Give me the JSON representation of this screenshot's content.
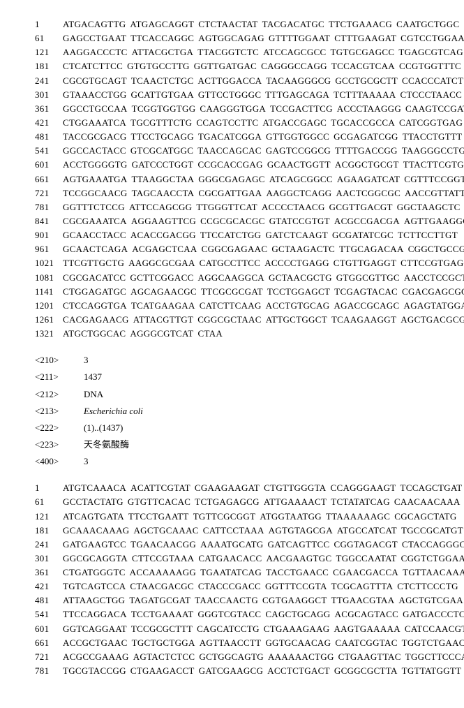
{
  "sequence_a": {
    "rows": [
      {
        "pos": "1",
        "groups": [
          "ATGACAGTTG",
          "ATGAGCAGGT",
          "CTCTAACTAT",
          "TACGACATGC",
          "TTCTGAAACG",
          "CAATGCTGGC"
        ]
      },
      {
        "pos": "61",
        "groups": [
          "GAGCCTGAAT",
          "TTCACCAGGC",
          "AGTGGCAGAG",
          "GTTTTGGAAT",
          "CTTTGAAGAT",
          "CGTCCTGGAA"
        ]
      },
      {
        "pos": "121",
        "groups": [
          "AAGGACCCTC",
          "ATTACGCTGA",
          "TTACGGTCTC",
          "ATCCAGCGCC",
          "TGTGCGAGCC",
          "TGAGCGTCAG"
        ]
      },
      {
        "pos": "181",
        "groups": [
          "CTCATCTTCC",
          "GTGTGCCTTG",
          "GGTTGATGAC",
          "CAGGGCCAGG",
          "TCCACGTCAA",
          "CCGTGGTTTC"
        ]
      },
      {
        "pos": "241",
        "groups": [
          "CGCGTGCAGT",
          "TCAACTCTGC",
          "ACTTGGACCA",
          "TACAAGGGCG",
          "GCCTGCGCTT",
          "CCACCCATCT"
        ]
      },
      {
        "pos": "301",
        "groups": [
          "GTAAACCTGG",
          "GCATTGTGAA",
          "GTTCCTGGGC",
          "TTTGAGCAGA",
          "TCTTTAAAAA",
          "CTCCCTAACC"
        ]
      },
      {
        "pos": "361",
        "groups": [
          "GGCCTGCCAA",
          "TCGGTGGTGG",
          "CAAGGGTGGA",
          "TCCGACTTCG",
          "ACCCTAAGGG",
          "CAAGTCCGAT"
        ]
      },
      {
        "pos": "421",
        "groups": [
          "CTGGAAATCA",
          "TGCGTTTCTG",
          "CCAGTCCTTC",
          "ATGACCGAGC",
          "TGCACCGCCA",
          "CATCGGTGAG"
        ]
      },
      {
        "pos": "481",
        "groups": [
          "TACCGCGACG",
          "TTCCTGCAGG",
          "TGACATCGGA",
          "GTTGGTGGCC",
          "GCGAGATCGG",
          "TTACCTGTTT"
        ]
      },
      {
        "pos": "541",
        "groups": [
          "GGCCACTACC",
          "GTCGCATGGC",
          "TAACCAGCAC",
          "GAGTCCGGCG",
          "TTTTGACCGG",
          "TAAGGGCCTG"
        ]
      },
      {
        "pos": "601",
        "groups": [
          "ACCTGGGGTG",
          "GATCCCTGGT",
          "CCGCACCGAG",
          "GCAACTGGTT",
          "ACGGCTGCGT",
          "TTACTTCGTG"
        ]
      },
      {
        "pos": "661",
        "groups": [
          "AGTGAAATGA",
          "TTAAGGCTAA",
          "GGGCGAGAGC",
          "ATCAGCGGCC",
          "AGAAGATCAT",
          "CGTTTCCGGT"
        ]
      },
      {
        "pos": "721",
        "groups": [
          "TCCGGCAACG",
          "TAGCAACCTA",
          "CGCGATTGAA",
          "AAGGCTCAGG",
          "AACTCGGCGC",
          "AACCGTTATT"
        ]
      },
      {
        "pos": "781",
        "groups": [
          "GGTTTCTCCG",
          "ATTCCAGCGG",
          "TTGGGTTCAT",
          "ACCCCTAACG",
          "GCGTTGACGT",
          "GGCTAAGCTC"
        ]
      },
      {
        "pos": "841",
        "groups": [
          "CGCGAAATCA",
          "AGGAAGTTCG",
          "CCGCGCACGC",
          "GTATCCGTGT",
          "ACGCCGACGA",
          "AGTTGAAGGC"
        ]
      },
      {
        "pos": "901",
        "groups": [
          "GCAACCTACC",
          "ACACCGACGG",
          "TTCCATCTGG",
          "GATCTCAAGT",
          "GCGATATCGC",
          "TCTTCCTTGT"
        ]
      },
      {
        "pos": "961",
        "groups": [
          "GCAACTCAGA",
          "ACGAGCTCAA",
          "CGGCGAGAAC",
          "GCTAAGACTC",
          "TTGCAGACAA",
          "CGGCTGCCGT"
        ]
      },
      {
        "pos": "1021",
        "groups": [
          "TTCGTTGCTG",
          "AAGGCGCGAA",
          "CATGCCTTCC",
          "ACCCCTGAGG",
          "CTGTTGAGGT",
          "CTTCCGTGAG"
        ]
      },
      {
        "pos": "1081",
        "groups": [
          "CGCGACATCC",
          "GCTTCGGACC",
          "AGGCAAGGCA",
          "GCTAACGCTG",
          "GTGGCGTTGC",
          "AACCTCCGCT"
        ]
      },
      {
        "pos": "1141",
        "groups": [
          "CTGGAGATGC",
          "AGCAGAACGC",
          "TTCGCGCGAT",
          "TCCTGGAGCT",
          "TCGAGTACAC",
          "CGACGAGCGC"
        ]
      },
      {
        "pos": "1201",
        "groups": [
          "CTCCAGGTGA",
          "TCATGAAGAA",
          "CATCTTCAAG",
          "ACCTGTGCAG",
          "AGACCGCAGC",
          "AGAGTATGGA"
        ]
      },
      {
        "pos": "1261",
        "groups": [
          "CACGAGAACG",
          "ATTACGTTGT",
          "CGGCGCTAAC",
          "ATTGCTGGCT",
          "TCAAGAAGGT",
          "AGCTGACGCG"
        ]
      },
      {
        "pos": "1321",
        "groups": [
          "ATGCTGGCAC",
          "AGGGCGTCAT",
          "CTAA"
        ]
      }
    ]
  },
  "meta": {
    "rows": [
      {
        "key": "<210>",
        "val": "3",
        "cls": ""
      },
      {
        "key": "<211>",
        "val": "1437",
        "cls": ""
      },
      {
        "key": "<212>",
        "val": "DNA",
        "cls": ""
      },
      {
        "key": "<213>",
        "val": "Escherichia coli",
        "cls": "italic"
      },
      {
        "key": "<222>",
        "val": "(1)..(1437)",
        "cls": ""
      },
      {
        "key": "<223>",
        "val": "天冬氨酸酶",
        "cls": ""
      },
      {
        "key": "<400>",
        "val": "3",
        "cls": ""
      }
    ]
  },
  "sequence_b": {
    "rows": [
      {
        "pos": "1",
        "groups": [
          "ATGTCAAACA",
          "ACATTCGTAT",
          "CGAAGAAGAT",
          "CTGTTGGGTA",
          "CCAGGGAAGT",
          "TCCAGCTGAT"
        ]
      },
      {
        "pos": "61",
        "groups": [
          "GCCTACTATG",
          "GTGTTCACAC",
          "TCTGAGAGCG",
          "ATTGAAAACT",
          "TCTATATCAG",
          "CAACAACAAA"
        ]
      },
      {
        "pos": "121",
        "groups": [
          "ATCAGTGATA",
          "TTCCTGAATT",
          "TGTTCGCGGT",
          "ATGGTAATGG",
          "TTAAAAAAGC",
          "CGCAGCTATG"
        ]
      },
      {
        "pos": "181",
        "groups": [
          "GCAAACAAAG",
          "AGCTGCAAAC",
          "CATTCCTAAA",
          "AGTGTAGCGA",
          "ATGCCATCAT",
          "TGCCGCATGT"
        ]
      },
      {
        "pos": "241",
        "groups": [
          "GATGAAGTCC",
          "TGAACAACGG",
          "AAAATGCATG",
          "GATCAGTTCC",
          "CGGTAGACGT",
          "CTACCAGGGC"
        ]
      },
      {
        "pos": "301",
        "groups": [
          "GGCGCAGGTA",
          "CTTCCGTAAA",
          "CATGAACACC",
          "AACGAAGTGC",
          "TGGCCAATAT",
          "CGGTCTGGAA"
        ]
      },
      {
        "pos": "361",
        "groups": [
          "CTGATGGGTC",
          "ACCAAAAAGG",
          "TGAATATCAG",
          "TACCTGAACC",
          "CGAACGACCA",
          "TGTTAACAAA"
        ]
      },
      {
        "pos": "421",
        "groups": [
          "TGTCAGTCCA",
          "CTAACGACGC",
          "CTACCCGACC",
          "GGTTTCCGTA",
          "TCGCAGTTTA",
          "CTCTTCCCTG"
        ]
      },
      {
        "pos": "481",
        "groups": [
          "ATTAAGCTGG",
          "TAGATGCGAT",
          "TAACCAACTG",
          "CGTGAAGGCT",
          "TTGAACGTAA",
          "AGCTGTCGAA"
        ]
      },
      {
        "pos": "541",
        "groups": [
          "TTCCAGGACA",
          "TCCTGAAAAT",
          "GGGTCGTACC",
          "CAGCTGCAGG",
          "ACGCAGTACC",
          "GATGACCCTC"
        ]
      },
      {
        "pos": "601",
        "groups": [
          "GGTCAGGAAT",
          "TCCGCGCTTT",
          "CAGCATCCTG",
          "CTGAAAGAAG",
          "AAGTGAAAAA",
          "CATCCAACGT"
        ]
      },
      {
        "pos": "661",
        "groups": [
          "ACCGCTGAAC",
          "TGCTGCTGGA",
          "AGTTAACCTT",
          "GGTGCAACAG",
          "CAATCGGTAC",
          "TGGTCTGAAC"
        ]
      },
      {
        "pos": "721",
        "groups": [
          "ACGCCGAAAG",
          "AGTACTCTCC",
          "GCTGGCAGTG",
          "AAAAAACTGG",
          "CTGAAGTTAC",
          "TGGCTTCCCA"
        ]
      },
      {
        "pos": "781",
        "groups": [
          "TGCGTACCGG",
          "CTGAAGACCT",
          "GATCGAAGCG",
          "ACCTCTGACT",
          "GCGGCGCTTA",
          "TGTTATGGTT"
        ]
      }
    ]
  }
}
